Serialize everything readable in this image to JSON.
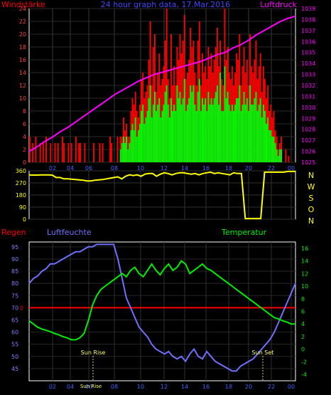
{
  "chart_data": [
    {
      "type": "bar",
      "title": "24 hour graph data, 17.Mar.2016",
      "left_label": "Windstärke",
      "right_label": "Luftdruck",
      "x_ticks": [
        "02",
        "04",
        "06",
        "08",
        "10",
        "12",
        "14",
        "16",
        "18",
        "20",
        "22",
        "00"
      ],
      "ylim_left": [
        0,
        24
      ],
      "y_ticks_left": [
        "0",
        "2",
        "4",
        "6",
        "8",
        "10",
        "12",
        "14",
        "16",
        "18",
        "20",
        "22",
        "24"
      ],
      "ylim_right": [
        1025,
        1039
      ],
      "y_ticks_right": [
        "1025",
        "1026",
        "1027",
        "1028",
        "1029",
        "1030",
        "1031",
        "1032",
        "1033",
        "1034",
        "1035",
        "1036",
        "1037",
        "1038",
        "1039"
      ],
      "series": [
        {
          "name": "Windstärke",
          "color": "#ff0000",
          "values": [
            4,
            0,
            3,
            0,
            4,
            0,
            0,
            3,
            0,
            3,
            0,
            4,
            0,
            0,
            3,
            0,
            0,
            3,
            0,
            3,
            0,
            0,
            4,
            3,
            0,
            0,
            3,
            0,
            3,
            0,
            0,
            4,
            0,
            3,
            3,
            0,
            0,
            3,
            0,
            0,
            0,
            0,
            0,
            3,
            0,
            0,
            0,
            3,
            0,
            3,
            0,
            0,
            0,
            0,
            4,
            3,
            0,
            0,
            0,
            4,
            0,
            4,
            4,
            7,
            5,
            6,
            4,
            4,
            8,
            10,
            9,
            11,
            8,
            7,
            9,
            13,
            14,
            10,
            11,
            12,
            16,
            22,
            12,
            18,
            20,
            11,
            14,
            17,
            12,
            13,
            15,
            19,
            24,
            13,
            10,
            20,
            12,
            15,
            12,
            18,
            16,
            20,
            17,
            19,
            23,
            13,
            14,
            16,
            21,
            18,
            19,
            14,
            12,
            19,
            22,
            12,
            17,
            14,
            15,
            13,
            18,
            15,
            17,
            14,
            16,
            18,
            21,
            15,
            19,
            13,
            12,
            24,
            16,
            18,
            14,
            13,
            15,
            12,
            14,
            17,
            16,
            20,
            12,
            15,
            18,
            14,
            16,
            12,
            20,
            15,
            14,
            16,
            19,
            13,
            15,
            17,
            11,
            15,
            13,
            10,
            12,
            8,
            9,
            7,
            8,
            5,
            4,
            2,
            3,
            4,
            0,
            0,
            2,
            0,
            1,
            0,
            0,
            0,
            0
          ]
        },
        {
          "name": "Böen",
          "color": "#00ff00",
          "values": [
            0,
            0,
            0,
            0,
            0,
            0,
            0,
            0,
            0,
            0,
            0,
            0,
            0,
            0,
            0,
            0,
            0,
            0,
            0,
            0,
            0,
            0,
            0,
            0,
            0,
            0,
            0,
            0,
            0,
            0,
            0,
            0,
            0,
            0,
            0,
            0,
            0,
            0,
            0,
            0,
            0,
            0,
            0,
            0,
            0,
            0,
            0,
            0,
            0,
            0,
            0,
            0,
            0,
            0,
            0,
            0,
            0,
            0,
            0,
            0,
            0,
            2,
            3,
            4,
            3,
            4,
            2,
            3,
            5,
            6,
            5,
            7,
            4,
            5,
            6,
            8,
            9,
            6,
            7,
            8,
            10,
            12,
            7,
            9,
            11,
            8,
            9,
            10,
            7,
            8,
            9,
            11,
            12,
            9,
            7,
            10,
            8,
            9,
            8,
            12,
            10,
            11,
            9,
            10,
            13,
            8,
            9,
            10,
            12,
            11,
            12,
            9,
            8,
            11,
            13,
            8,
            10,
            9,
            10,
            8,
            11,
            9,
            10,
            9,
            10,
            11,
            12,
            9,
            14,
            8,
            8,
            15,
            10,
            11,
            9,
            8,
            9,
            8,
            9,
            10,
            10,
            12,
            8,
            9,
            11,
            9,
            10,
            8,
            12,
            9,
            9,
            10,
            11,
            8,
            9,
            10,
            7,
            9,
            8,
            6,
            7,
            5,
            5,
            4,
            4,
            3,
            2,
            1,
            2,
            2,
            0,
            0,
            0,
            0,
            0,
            0,
            0,
            0,
            0
          ]
        },
        {
          "name": "Luftdruck",
          "color": "#ff00ff",
          "values": [
            1026.0,
            1026.4,
            1026.9,
            1027.3,
            1027.8,
            1028.2,
            1028.7,
            1029.2,
            1029.7,
            1030.2,
            1030.7,
            1031.2,
            1031.6,
            1032.0,
            1032.4,
            1032.7,
            1033.0,
            1033.2,
            1033.4,
            1033.6,
            1033.8,
            1034.0,
            1034.2,
            1034.5,
            1034.8,
            1035.0,
            1035.4,
            1035.7,
            1036.1,
            1036.6,
            1037.0,
            1037.4,
            1037.8,
            1038.1,
            1038.3
          ]
        }
      ]
    },
    {
      "type": "line",
      "name": "Windrichtung",
      "ylim": [
        0,
        360
      ],
      "y_ticks": [
        "0",
        "90",
        "180",
        "270",
        "360"
      ],
      "direction_labels": [
        "N",
        "W",
        "S",
        "O",
        "N"
      ],
      "color": "#ffff00",
      "values": [
        330,
        328,
        328,
        330,
        330,
        330,
        328,
        310,
        310,
        300,
        300,
        298,
        295,
        292,
        290,
        285,
        285,
        290,
        292,
        295,
        300,
        305,
        310,
        315,
        300,
        320,
        330,
        325,
        330,
        320,
        335,
        340,
        340,
        320,
        335,
        345,
        340,
        330,
        340,
        345,
        345,
        340,
        335,
        340,
        330,
        340,
        345,
        350,
        340,
        345,
        340,
        335,
        330,
        345,
        340,
        340,
        5,
        5,
        5,
        5,
        5,
        350,
        350,
        350,
        350,
        350,
        350,
        355,
        355,
        355
      ]
    },
    {
      "type": "line",
      "left_label": "Regen",
      "series_label_humidity": "Luftfeuchte",
      "series_label_temp": "Temperatur",
      "x_ticks": [
        "02",
        "04",
        "06",
        "08",
        "10",
        "12",
        "14",
        "16",
        "18",
        "20",
        "22",
        "00"
      ],
      "ylim_humidity": [
        40,
        97
      ],
      "y_ticks_humidity": [
        "45",
        "50",
        "55",
        "60",
        "65",
        "70",
        "75",
        "80",
        "85",
        "90",
        "95"
      ],
      "ylim_temp": [
        -5,
        17
      ],
      "y_ticks_temp": [
        "-4",
        "-2",
        "0",
        "2",
        "4",
        "6",
        "8",
        "10",
        "12",
        "14",
        "16"
      ],
      "rain_value_label": "0",
      "rain_level": 70,
      "sunrise_label": "Sun Rise",
      "sunset_label": "Sun Set",
      "bottom_overlap_label": "Sun Rise",
      "humidity_color": "#7070ff",
      "temperature_color": "#00ee00",
      "rain_color": "#ff0000",
      "humidity_values": [
        80,
        82,
        83,
        85,
        86,
        88,
        88,
        89,
        90,
        91,
        92,
        93,
        93,
        94,
        95,
        95,
        96,
        96,
        96,
        96,
        96,
        90,
        82,
        74,
        70,
        66,
        62,
        60,
        58,
        55,
        53,
        52,
        51,
        52,
        50,
        49,
        50,
        48,
        51,
        53,
        50,
        49,
        52,
        50,
        48,
        47,
        46,
        45,
        44,
        44,
        46,
        47,
        48,
        49,
        51,
        53,
        55,
        57,
        60,
        64,
        68,
        72,
        76,
        80
      ],
      "temperature_values": [
        4.5,
        4.0,
        3.5,
        3.2,
        3.0,
        2.8,
        2.5,
        2.3,
        2.0,
        1.8,
        1.5,
        1.5,
        1.8,
        2.5,
        4.5,
        7.0,
        8.5,
        9.5,
        10.0,
        10.5,
        11.0,
        11.5,
        12.0,
        11.5,
        12.5,
        13.0,
        12.0,
        11.5,
        12.5,
        13.5,
        12.5,
        11.8,
        12.8,
        13.5,
        12.5,
        13.0,
        14.0,
        13.5,
        12.0,
        12.5,
        13.0,
        13.5,
        12.8,
        12.5,
        12.0,
        11.5,
        11.0,
        10.5,
        10.0,
        9.5,
        9.0,
        8.5,
        8.0,
        7.5,
        7.0,
        6.5,
        6.0,
        5.5,
        5.0,
        4.8,
        4.5,
        4.3,
        4.0,
        4.0
      ]
    }
  ]
}
